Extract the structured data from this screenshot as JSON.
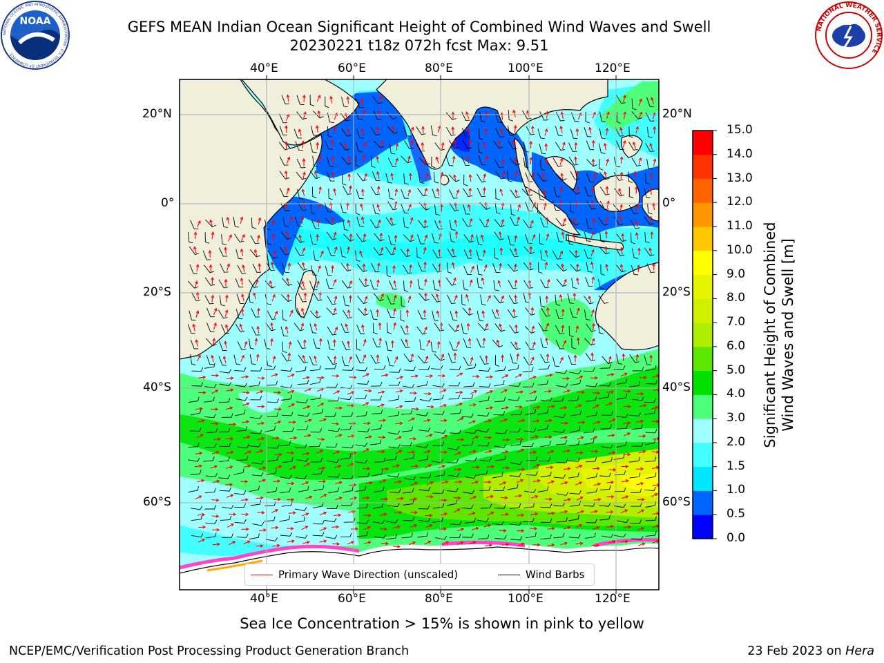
{
  "header": {
    "title_line1": "GEFS MEAN Indian Ocean Significant Height of Combined Wind Waves and Swell",
    "title_line2": "20230221 t18z 072h fcst   Max: 9.51"
  },
  "logos": {
    "noaa_text": "NOAA",
    "noaa_ring_text": "NATIONAL OCEANIC AND ATMOSPHERIC ADMINISTRATION · U.S. DEPARTMENT OF COMMERCE",
    "nws_ring_text": "NATIONAL WEATHER SERVICE"
  },
  "map": {
    "lon_labels": [
      "40°E",
      "60°E",
      "80°E",
      "100°E",
      "120°E"
    ],
    "lat_labels": [
      "20°N",
      "0°",
      "20°S",
      "40°S",
      "60°S"
    ],
    "lon_range": [
      20,
      130
    ],
    "lat_range": [
      -73,
      27
    ],
    "grid": true,
    "colors": {
      "land": "#efefdc",
      "coast": "#000000",
      "wave_arrow": "#ff0000",
      "wind_barb": "#000000"
    }
  },
  "colorbar": {
    "label": "Significant Height of Combined\nWind Waves and Swell [m]",
    "label_line1": "Significant Height of Combined",
    "label_line2": "Wind Waves and Swell [m]",
    "ticks": [
      "0.0",
      "0.5",
      "1.0",
      "1.5",
      "2.0",
      "3.0",
      "4.0",
      "5.0",
      "6.0",
      "7.0",
      "8.0",
      "9.0",
      "10.0",
      "11.0",
      "12.0",
      "13.0",
      "14.0",
      "15.0"
    ],
    "colors": [
      "#0000ff",
      "#0064ff",
      "#00e6ff",
      "#44ffff",
      "#a0ffff",
      "#4dff7a",
      "#00e000",
      "#5ce600",
      "#b0ee00",
      "#d0f000",
      "#e5f500",
      "#ffff00",
      "#ffc800",
      "#ff9600",
      "#ff6400",
      "#ff3200",
      "#ff0000"
    ]
  },
  "legend": {
    "wave_label": "Primary Wave Direction (unscaled)",
    "wind_label": "Wind Barbs"
  },
  "footer": {
    "sea_ice_note": "Sea Ice Concentration > 15% is shown in pink to yellow",
    "left": "NCEP/EMC/Verification Post Processing Product Generation Branch",
    "right_date": "23 Feb 2023 on ",
    "right_host": "Hera"
  }
}
